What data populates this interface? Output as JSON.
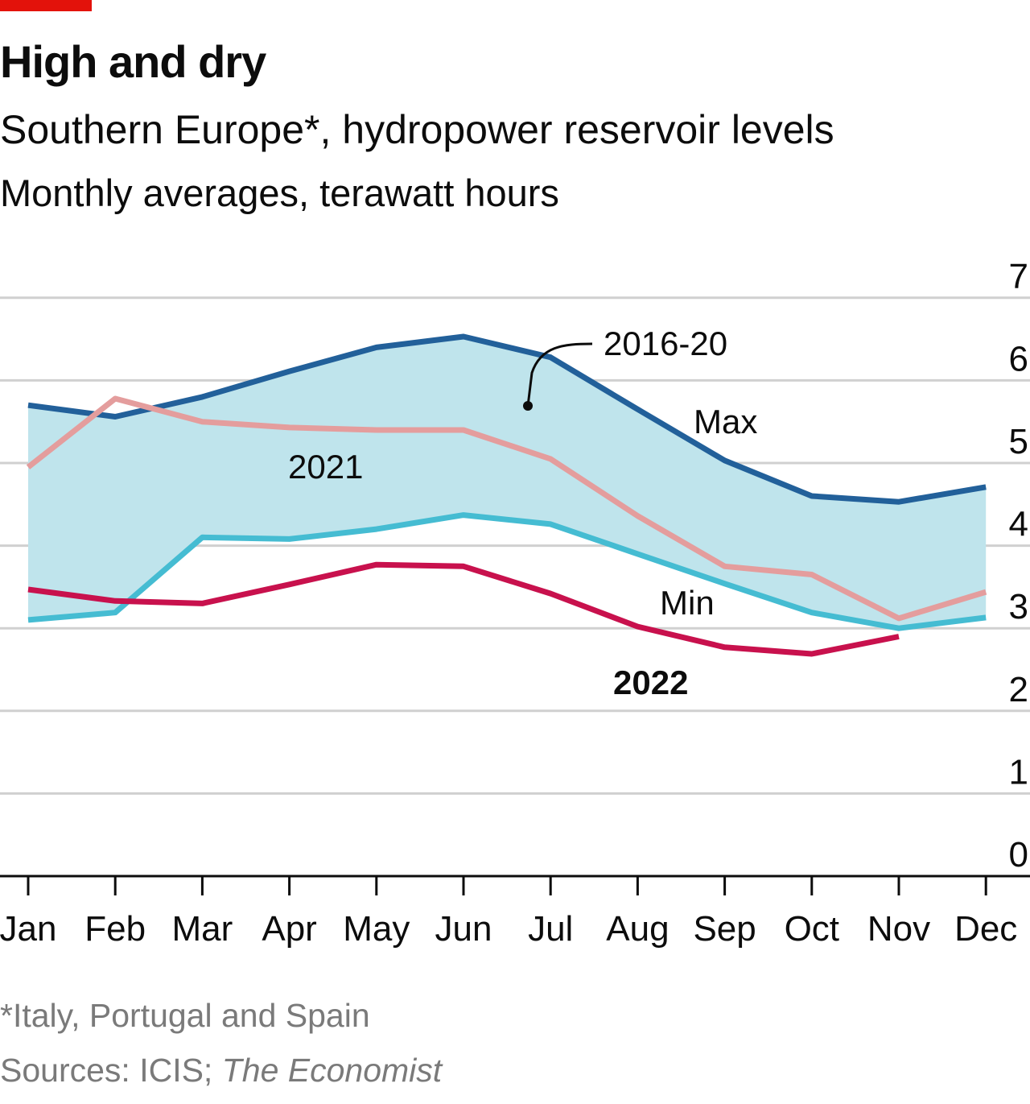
{
  "header": {
    "title": "High and dry",
    "subtitle": "Southern Europe*, hydropower reservoir levels",
    "unit": "Monthly averages, terawatt hours"
  },
  "footer": {
    "footnote": "*Italy, Portugal and Spain",
    "source_prefix": "Sources: ICIS; ",
    "source_italic": "The Economist"
  },
  "colors": {
    "brand_red": "#e3120b",
    "band_fill": "#bfe4ec",
    "max_line": "#22609a",
    "min_line": "#45bcd2",
    "line_2021": "#e49d9d",
    "line_2022": "#c8114d",
    "gridline": "#d0d0d0",
    "axis": "#0c0c0c"
  },
  "chart_data": {
    "type": "area",
    "categories": [
      "Jan",
      "Feb",
      "Mar",
      "Apr",
      "May",
      "Jun",
      "Jul",
      "Aug",
      "Sep",
      "Oct",
      "Nov",
      "Dec"
    ],
    "ylim": [
      0,
      7
    ],
    "yticks": [
      "0",
      "1",
      "2",
      "3",
      "4",
      "5",
      "6",
      "7"
    ],
    "y_axis_side": "right",
    "grid": true,
    "band": {
      "label": "2016-20",
      "max": {
        "name": "Max",
        "values": [
          5.7,
          5.56,
          5.8,
          6.11,
          6.4,
          6.53,
          6.28,
          5.65,
          5.03,
          4.6,
          4.53,
          4.71
        ]
      },
      "min": {
        "name": "Min",
        "values": [
          3.1,
          3.19,
          4.1,
          4.08,
          4.2,
          4.37,
          4.26,
          3.9,
          3.54,
          3.19,
          3.0,
          3.13
        ]
      }
    },
    "series": [
      {
        "name": "2021",
        "values": [
          4.95,
          5.78,
          5.5,
          5.43,
          5.4,
          5.4,
          5.05,
          4.36,
          3.75,
          3.65,
          3.12,
          3.44
        ]
      },
      {
        "name": "2022",
        "values": [
          3.47,
          3.33,
          3.3,
          3.53,
          3.77,
          3.75,
          3.42,
          3.02,
          2.77,
          2.69,
          2.9,
          null
        ]
      }
    ],
    "annotations": {
      "band_label": "2016-20",
      "max_label": "Max",
      "min_label": "Min",
      "label_2021": "2021",
      "label_2022": "2022"
    }
  }
}
